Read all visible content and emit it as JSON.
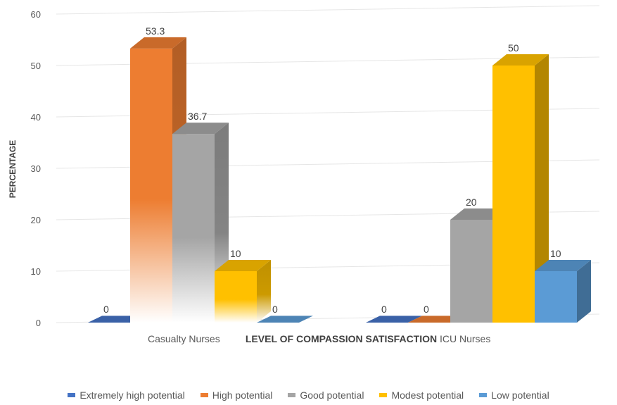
{
  "chart_data": {
    "type": "bar",
    "title": "",
    "xlabel": "LEVEL OF COMPASSION SATISFACTION",
    "ylabel": "PERCENTAGE",
    "ylim": [
      0,
      60
    ],
    "yticks": [
      0,
      10,
      20,
      30,
      40,
      50,
      60
    ],
    "grid": true,
    "legend_position": "bottom",
    "categories": [
      "Casualty Nurses",
      "ICU Nurses"
    ],
    "series": [
      {
        "name": "Extremely high potential",
        "color": "#4472c4",
        "values": [
          0,
          0
        ],
        "labels": [
          "0",
          "0"
        ]
      },
      {
        "name": "High potential",
        "color": "#ed7d31",
        "values": [
          53.3,
          0
        ],
        "labels": [
          "53.3",
          "0"
        ]
      },
      {
        "name": "Good potential",
        "color": "#a5a5a5",
        "values": [
          36.7,
          20
        ],
        "labels": [
          "36.7",
          "20"
        ]
      },
      {
        "name": "Modest potential",
        "color": "#ffc000",
        "values": [
          10,
          50
        ],
        "labels": [
          "10",
          "50"
        ]
      },
      {
        "name": "Low potential",
        "color": "#5b9bd5",
        "values": [
          0,
          10
        ],
        "labels": [
          "0",
          "10"
        ]
      }
    ]
  }
}
